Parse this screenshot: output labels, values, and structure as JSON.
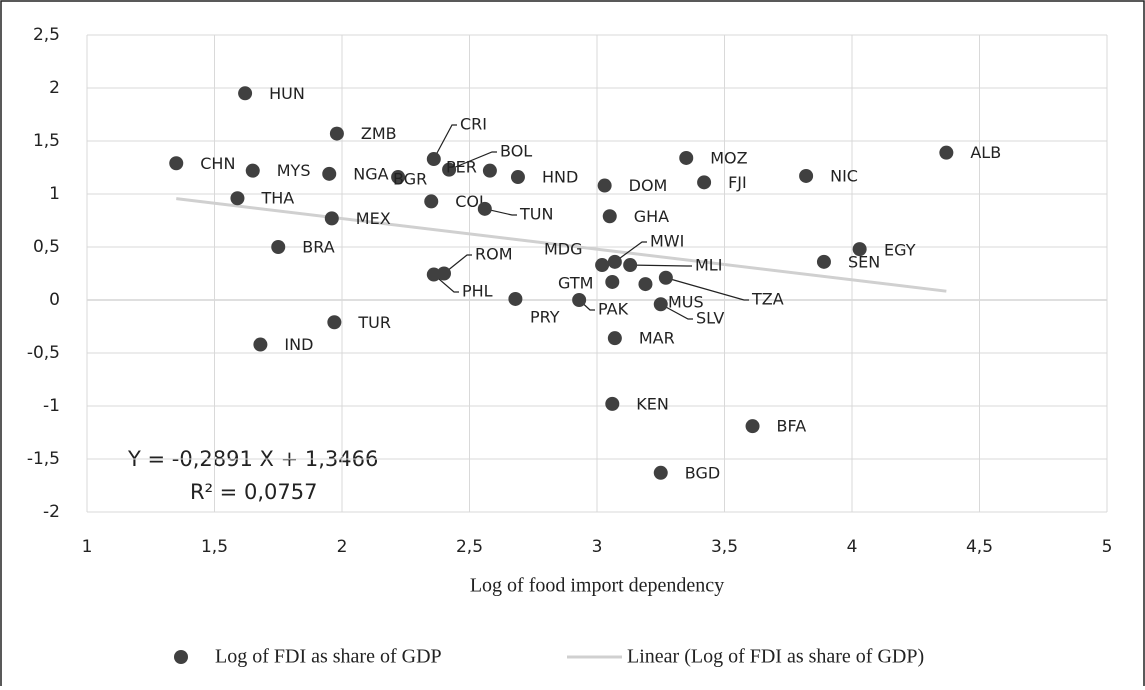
{
  "chart_data": {
    "type": "scatter",
    "xlabel": "Log of food import dependency",
    "xlim": [
      1,
      5
    ],
    "xticks": [
      1,
      {
        "value": 1.5,
        "label": "1,5"
      },
      2,
      {
        "value": 2.5,
        "label": "2,5"
      },
      3,
      {
        "value": 3.5,
        "label": "3,5"
      },
      4,
      {
        "value": 4.5,
        "label": "4,5"
      },
      5
    ],
    "ylim": [
      -2,
      2.5
    ],
    "yticks": [
      {
        "value": -2,
        "label": "-2"
      },
      {
        "value": -1.5,
        "label": "-1,5"
      },
      {
        "value": -1,
        "label": "-1"
      },
      {
        "value": -0.5,
        "label": "-0,5"
      },
      0,
      {
        "value": 0.5,
        "label": "0,5"
      },
      1,
      {
        "value": 1.5,
        "label": "1,5"
      },
      2,
      {
        "value": 2.5,
        "label": "2,5"
      }
    ],
    "grid": true,
    "series": [
      {
        "name": "Log of FDI as share of GDP",
        "color": "#404040",
        "labels": [
          "HUN",
          "ZMB",
          "CRI",
          "CHN",
          "MYS",
          "NGA",
          "BGR",
          "BOL",
          "PER",
          "HND",
          "DOM",
          "MOZ",
          "FJI",
          "NIC",
          "ALB",
          "THA",
          "MEX",
          "COL",
          "TUN",
          "GHA",
          "BRA",
          "ROM",
          "PHL",
          "MDG",
          "MWI",
          "MLI",
          "GTM",
          "MUS",
          "TZA",
          "SEN",
          "EGY",
          "PRY",
          "PAK",
          "SLV",
          "TUR",
          "IND",
          "MAR",
          "KEN",
          "BFA",
          "BGD"
        ],
        "x": [
          1.62,
          1.98,
          2.36,
          1.35,
          1.65,
          1.95,
          2.22,
          2.42,
          2.58,
          2.69,
          3.03,
          3.35,
          3.42,
          3.82,
          4.37,
          1.59,
          1.96,
          2.35,
          2.56,
          3.05,
          1.75,
          2.4,
          2.36,
          3.02,
          3.07,
          3.13,
          3.06,
          3.19,
          3.27,
          3.89,
          4.03,
          2.68,
          2.93,
          3.25,
          1.97,
          1.68,
          3.07,
          3.06,
          3.61,
          3.25
        ],
        "values": [
          1.95,
          1.57,
          1.33,
          1.29,
          1.22,
          1.19,
          1.16,
          1.23,
          1.22,
          1.16,
          1.08,
          1.34,
          1.11,
          1.17,
          1.39,
          0.96,
          0.77,
          0.93,
          0.86,
          0.79,
          0.5,
          0.25,
          0.24,
          0.33,
          0.36,
          0.33,
          0.17,
          0.15,
          0.21,
          0.36,
          0.48,
          0.01,
          0.0,
          -0.04,
          -0.21,
          -0.42,
          -0.36,
          -0.98,
          -1.19,
          -1.63
        ]
      }
    ],
    "trendline": {
      "name": "Linear (Log of FDI as share of GDP)",
      "slope": -0.2891,
      "intercept": 1.3466,
      "color": "#d0d0d0"
    },
    "annotations": [
      "Y = -0,2891 X + 1,3466",
      "R² = 0,0757"
    ]
  }
}
